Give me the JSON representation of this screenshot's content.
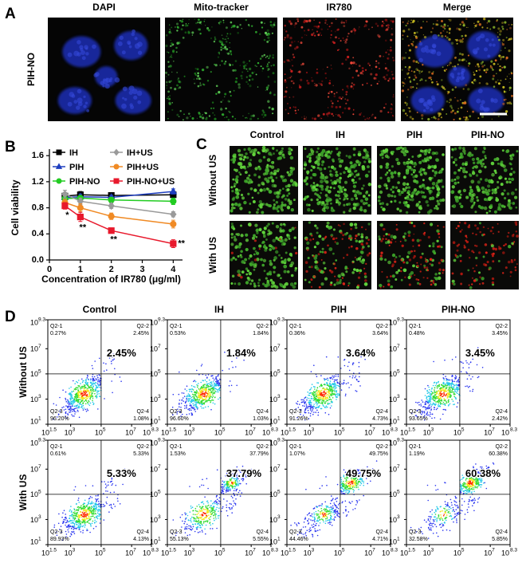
{
  "panel_labels": [
    "A",
    "B",
    "C",
    "D"
  ],
  "panel_a": {
    "row_label": "PIH-NO",
    "columns": [
      "DAPI",
      "Mito-tracker",
      "IR780",
      "Merge"
    ]
  },
  "chart_data": {
    "type": "line",
    "x": [
      0.5,
      1,
      2,
      4
    ],
    "xlim": [
      0,
      4.3
    ],
    "xticks": [
      0,
      1,
      2,
      3,
      4
    ],
    "ylim": [
      0,
      1.7
    ],
    "yticks": [
      {
        "value": 0,
        "label": "0.0"
      },
      0.4,
      0.8,
      1.2,
      1.6
    ],
    "xlabel": "Concentration of IR780 (μg/ml)",
    "ylabel": "Cell viability",
    "legend_columns": 2,
    "series": [
      {
        "name": "IH",
        "color": "#000000",
        "marker": "square",
        "values": [
          0.98,
          1.0,
          0.99,
          1.0
        ],
        "errors": [
          0.04,
          0.05,
          0.03,
          0.04
        ]
      },
      {
        "name": "PIH",
        "color": "#1f3fbf",
        "marker": "triangle",
        "values": [
          0.96,
          0.97,
          0.96,
          1.05
        ],
        "errors": [
          0.03,
          0.04,
          0.03,
          0.04
        ]
      },
      {
        "name": "PIH-NO",
        "color": "#22cc22",
        "marker": "circle",
        "values": [
          0.94,
          0.95,
          0.92,
          0.9
        ],
        "errors": [
          0.04,
          0.03,
          0.04,
          0.05
        ]
      },
      {
        "name": "IH+US",
        "color": "#9a9a9a",
        "marker": "diamond",
        "values": [
          1.01,
          0.9,
          0.83,
          0.7
        ],
        "errors": [
          0.06,
          0.05,
          0.04,
          0.04
        ]
      },
      {
        "name": "PIH+US",
        "color": "#f08a24",
        "marker": "circle",
        "values": [
          0.88,
          0.8,
          0.67,
          0.55
        ],
        "errors": [
          0.05,
          0.06,
          0.05,
          0.06
        ]
      },
      {
        "name": "PIH-NO+US",
        "color": "#e8192c",
        "marker": "square",
        "values": [
          0.83,
          0.66,
          0.45,
          0.25
        ],
        "errors": [
          0.05,
          0.07,
          0.04,
          0.06
        ]
      }
    ],
    "significance": [
      "*",
      "**",
      "**",
      "**"
    ]
  },
  "panel_c": {
    "columns": [
      "Control",
      "IH",
      "PIH",
      "PIH-NO"
    ],
    "rows": [
      "Without US",
      "With US"
    ]
  },
  "panel_d": {
    "columns": [
      "Control",
      "IH",
      "PIH",
      "PIH-NO"
    ],
    "rows": [
      "Without US",
      "With US"
    ],
    "quadrant_names": [
      "Q2-1",
      "Q2-2",
      "Q2-3",
      "Q2-4"
    ],
    "axis_base": "10",
    "xlim": [
      1.5,
      8.3
    ],
    "xticks": [
      1.5,
      3,
      5,
      7,
      8.3
    ],
    "ylim": [
      1,
      9.3
    ],
    "yticks": [
      1,
      3,
      5,
      7,
      9.3
    ],
    "plots": [
      [
        [
          "0.27%",
          "2.45%",
          "96.20%",
          "1.08%"
        ],
        [
          "0.53%",
          "1.84%",
          "96.60%",
          "1.03%"
        ],
        [
          "0.36%",
          "3.64%",
          "91.26%",
          "4.73%"
        ],
        [
          "0.48%",
          "3.45%",
          "93.65%",
          "2.42%"
        ]
      ],
      [
        [
          "0.61%",
          "5.33%",
          "89.93%",
          "4.13%"
        ],
        [
          "1.53%",
          "37.79%",
          "55.13%",
          "5.55%"
        ],
        [
          "1.07%",
          "49.75%",
          "44.46%",
          "4.71%"
        ],
        [
          "1.19%",
          "60.38%",
          "32.58%",
          "5.85%"
        ]
      ]
    ]
  }
}
